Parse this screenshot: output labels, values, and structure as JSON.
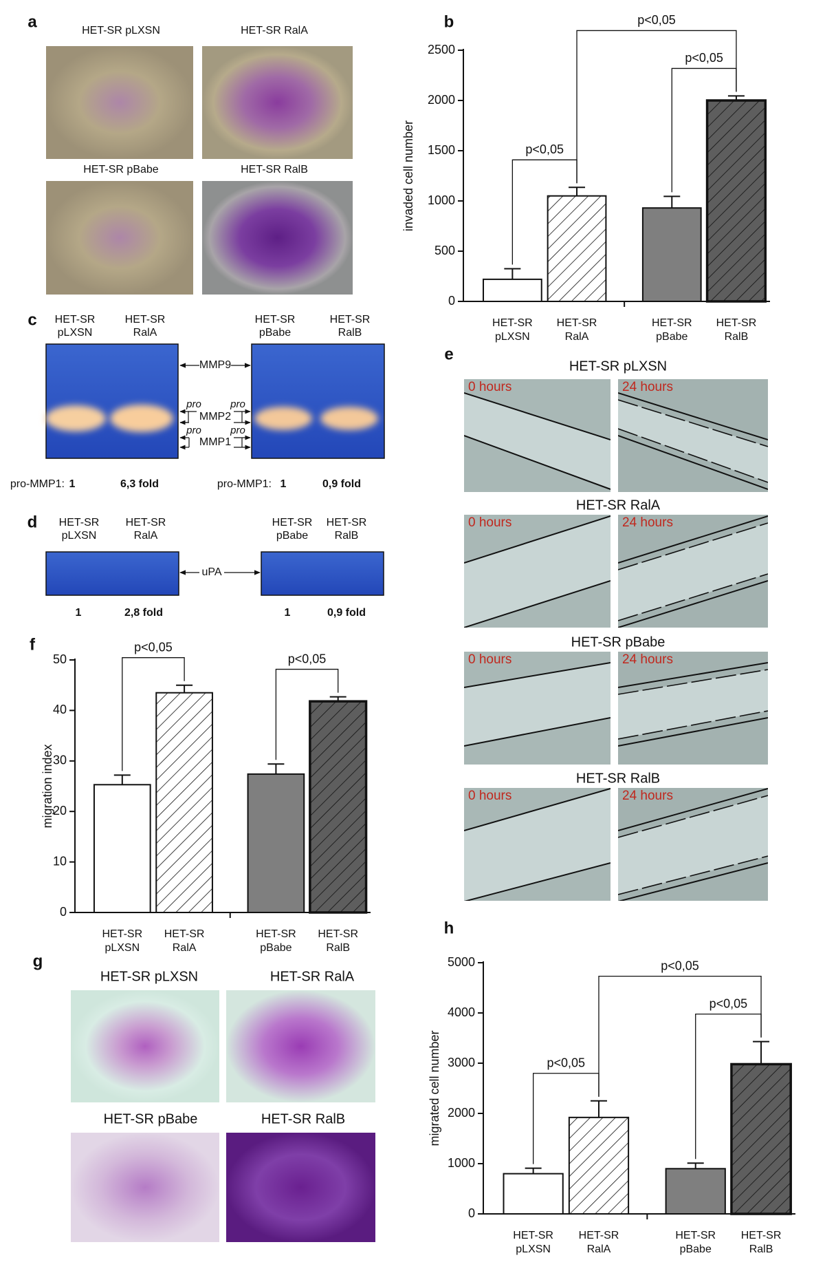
{
  "panel_a": {
    "label": "a",
    "captions": [
      "HET-SR pLXSN",
      "HET-SR RalA",
      "HET-SR pBabe",
      "HET-SR RalB"
    ]
  },
  "panel_c": {
    "label": "c",
    "lanes": [
      [
        "HET-SR",
        "pLXSN"
      ],
      [
        "HET-SR",
        "RalA"
      ],
      [
        "HET-SR",
        "pBabe"
      ],
      [
        "HET-SR",
        "RalB"
      ]
    ],
    "markers": {
      "mmp9": "MMP9",
      "pro": "pro",
      "mmp2": "MMP2",
      "mmp1": "MMP1"
    },
    "quantification": [
      {
        "name": "pro-MMP1:",
        "control": 1,
        "fold": "6,3 fold"
      },
      {
        "name": "pro-MMP1:",
        "control": 1,
        "fold": "0,9 fold"
      }
    ]
  },
  "panel_d": {
    "label": "d",
    "lanes": [
      [
        "HET-SR",
        "pLXSN"
      ],
      [
        "HET-SR",
        "RalA"
      ],
      [
        "HET-SR",
        "pBabe"
      ],
      [
        "HET-SR",
        "RalB"
      ]
    ],
    "marker": "uPA",
    "quantification": [
      {
        "control": 1,
        "fold": "2,8 fold"
      },
      {
        "control": 1,
        "fold": "0,9 fold"
      }
    ]
  },
  "panel_e": {
    "label": "e",
    "rows": [
      {
        "title": "HET-SR pLXSN",
        "times": [
          "0 hours",
          "24 hours"
        ]
      },
      {
        "title": "HET-SR RalA",
        "times": [
          "0 hours",
          "24 hours"
        ]
      },
      {
        "title": "HET-SR pBabe",
        "times": [
          "0 hours",
          "24 hours"
        ]
      },
      {
        "title": "HET-SR RalB",
        "times": [
          "0 hours",
          "24 hours"
        ]
      }
    ]
  },
  "panel_g": {
    "label": "g",
    "captions": [
      "HET-SR pLXSN",
      "HET-SR RalA",
      "HET-SR pBabe",
      "HET-SR RalB"
    ]
  },
  "chart_data": [
    {
      "label": "b",
      "type": "bar",
      "ylabel": "invaded cell number",
      "categories": [
        [
          "HET-SR",
          "pLXSN"
        ],
        [
          "HET-SR",
          "RalA"
        ],
        [
          "HET-SR",
          "pBabe"
        ],
        [
          "HET-SR",
          "RalB"
        ]
      ],
      "values": [
        220,
        1050,
        930,
        2000
      ],
      "errors": [
        105,
        85,
        115,
        45
      ],
      "colors": [
        "#ffffff",
        "#ffffff",
        "#7f7f7f",
        "#5e5e5e"
      ],
      "hatch": [
        false,
        true,
        false,
        true
      ],
      "ylim": [
        0,
        2500
      ],
      "yticks": [
        0,
        500,
        1000,
        1500,
        2000,
        2500
      ],
      "brackets": [
        {
          "bars": [
            0,
            1
          ],
          "label": "p<0,05"
        },
        {
          "bars": [
            2,
            3
          ],
          "label": "p<0,05"
        },
        {
          "bars": [
            1,
            3
          ],
          "label": "p<0,05"
        }
      ]
    },
    {
      "label": "f",
      "type": "bar",
      "ylabel": "migration index",
      "categories": [
        [
          "HET-SR",
          "pLXSN"
        ],
        [
          "HET-SR",
          "RalA"
        ],
        [
          "HET-SR",
          "pBabe"
        ],
        [
          "HET-SR",
          "RalB"
        ]
      ],
      "values": [
        25.3,
        43.5,
        27.4,
        41.8
      ],
      "errors": [
        1.9,
        1.5,
        2,
        0.9
      ],
      "colors": [
        "#ffffff",
        "#ffffff",
        "#7f7f7f",
        "#5e5e5e"
      ],
      "hatch": [
        false,
        true,
        false,
        true
      ],
      "ylim": [
        0,
        50
      ],
      "yticks": [
        0,
        10,
        20,
        30,
        40,
        50
      ],
      "brackets": [
        {
          "bars": [
            0,
            1
          ],
          "label": "p<0,05"
        },
        {
          "bars": [
            2,
            3
          ],
          "label": "p<0,05"
        }
      ]
    },
    {
      "label": "h",
      "type": "bar",
      "ylabel": "migrated cell number",
      "categories": [
        [
          "HET-SR",
          "pLXSN"
        ],
        [
          "HET-SR",
          "RalA"
        ],
        [
          "HET-SR",
          "pBabe"
        ],
        [
          "HET-SR",
          "RalB"
        ]
      ],
      "values": [
        800,
        1920,
        900,
        2980
      ],
      "errors": [
        110,
        330,
        110,
        450
      ],
      "colors": [
        "#ffffff",
        "#ffffff",
        "#7f7f7f",
        "#5e5e5e"
      ],
      "hatch": [
        false,
        true,
        false,
        true
      ],
      "ylim": [
        0,
        5000
      ],
      "yticks": [
        0,
        1000,
        2000,
        3000,
        4000,
        5000
      ],
      "brackets": [
        {
          "bars": [
            0,
            1
          ],
          "label": "p<0,05"
        },
        {
          "bars": [
            2,
            3
          ],
          "label": "p<0,05"
        },
        {
          "bars": [
            1,
            3
          ],
          "label": "p<0,05"
        }
      ]
    }
  ]
}
